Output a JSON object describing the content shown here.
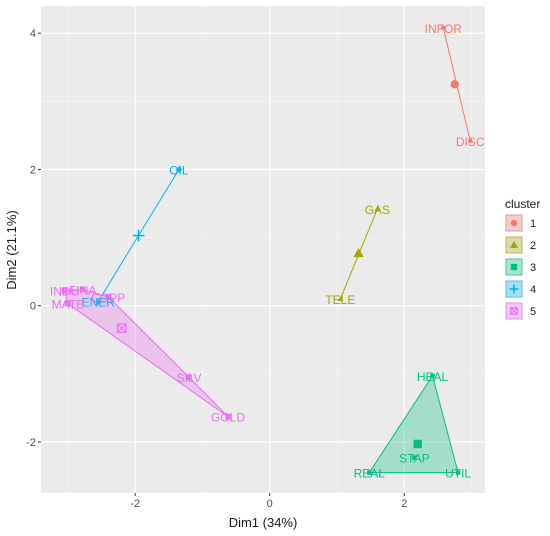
{
  "chart_data": {
    "type": "scatter",
    "xlabel": "Dim1 (34%)",
    "ylabel": "Dim2 (21.1%)",
    "xlim": [
      -3.4,
      3.2
    ],
    "ylim": [
      -2.75,
      4.4
    ],
    "x_ticks": [
      -2,
      0,
      2
    ],
    "y_ticks": [
      -2,
      0,
      2,
      4
    ],
    "x_tick_labels": [
      "-2",
      "0",
      "2"
    ],
    "y_tick_labels": [
      "-2",
      "0",
      "2",
      "4"
    ],
    "grid": true,
    "legend": {
      "title": "cluster",
      "placement": "right"
    },
    "clusters": [
      {
        "name": "1",
        "color": "#F8766D",
        "shape": "circle",
        "center": [
          2.75,
          3.25
        ],
        "points": [
          {
            "label": "INFOR",
            "x": 2.58,
            "y": 4.08
          },
          {
            "label": "DISC",
            "x": 2.98,
            "y": 2.42
          }
        ]
      },
      {
        "name": "2",
        "color": "#A3A500",
        "shape": "triangle",
        "center": [
          1.32,
          0.77
        ],
        "points": [
          {
            "label": "GAS",
            "x": 1.6,
            "y": 1.42
          },
          {
            "label": "TELE",
            "x": 1.05,
            "y": 0.1
          }
        ]
      },
      {
        "name": "3",
        "color": "#00BF7D",
        "shape": "square",
        "center": [
          2.2,
          -2.03
        ],
        "points": [
          {
            "label": "HEAL",
            "x": 2.42,
            "y": -1.03
          },
          {
            "label": "STAP",
            "x": 2.15,
            "y": -2.23
          },
          {
            "label": "REAL",
            "x": 1.48,
            "y": -2.45
          },
          {
            "label": "UTIL",
            "x": 2.8,
            "y": -2.45
          }
        ]
      },
      {
        "name": "4",
        "color": "#00B0F6",
        "shape": "cross",
        "center": [
          -1.95,
          1.03
        ],
        "points": [
          {
            "label": "OIL",
            "x": -1.35,
            "y": 2.0
          },
          {
            "label": "ENER",
            "x": -2.55,
            "y": 0.06
          }
        ]
      },
      {
        "name": "5",
        "color": "#E76BF3",
        "shape": "boxcross",
        "center": [
          -2.2,
          -0.33
        ],
        "points": [
          {
            "label": "INDU",
            "x": -3.05,
            "y": 0.22
          },
          {
            "label": "FINA",
            "x": -2.78,
            "y": 0.24
          },
          {
            "label": "COPP",
            "x": -2.4,
            "y": 0.13
          },
          {
            "label": "MATE",
            "x": -3.0,
            "y": 0.03
          },
          {
            "label": "SILV",
            "x": -1.2,
            "y": -1.05
          },
          {
            "label": "GOLD",
            "x": -0.62,
            "y": -1.63
          }
        ]
      }
    ]
  }
}
